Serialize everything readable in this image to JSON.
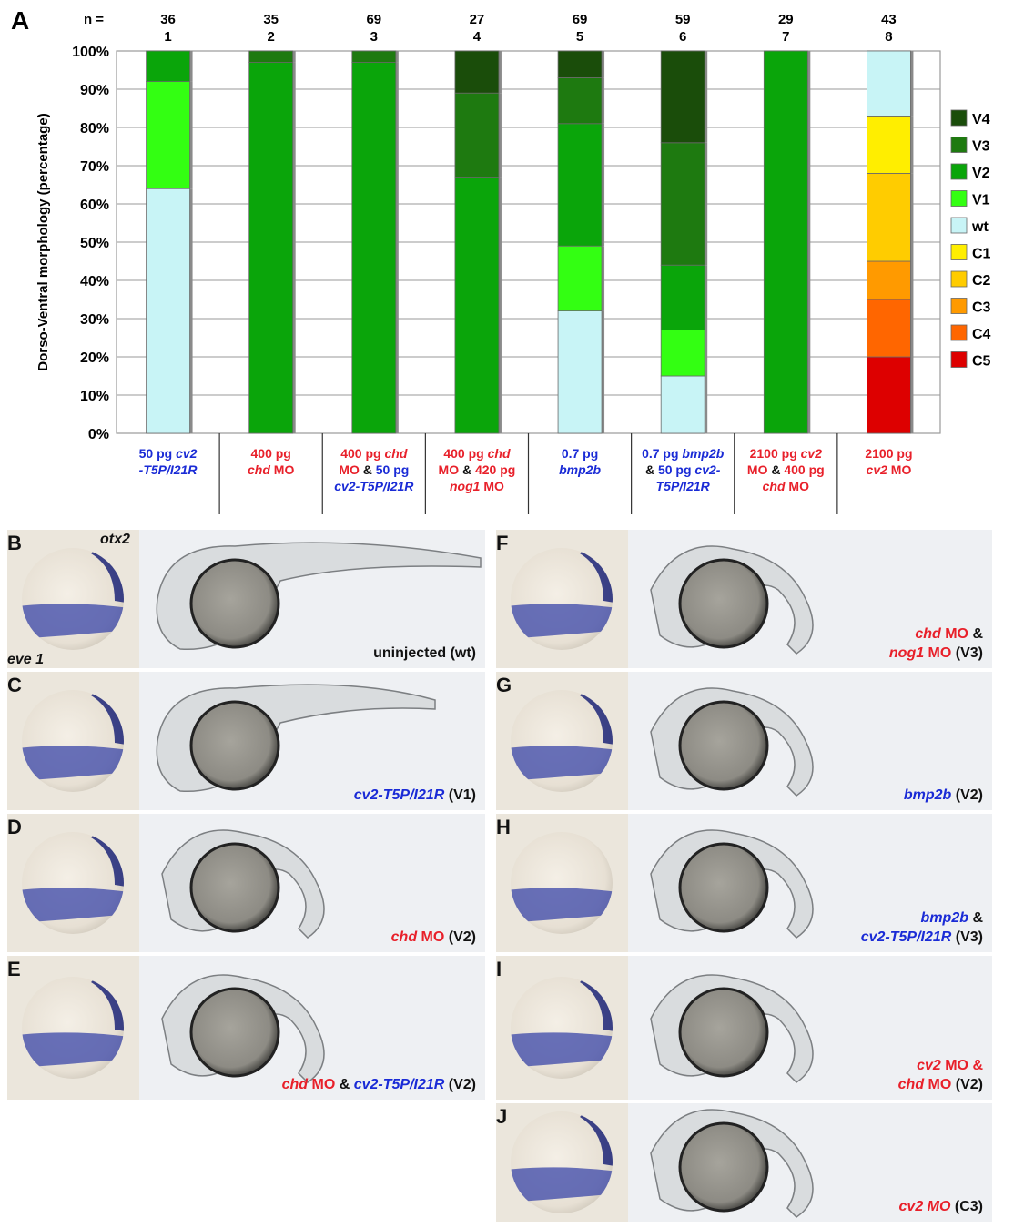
{
  "figure_label": "A",
  "chart_data": {
    "type": "bar",
    "stacked": true,
    "n_label": "n =",
    "ylabel": "Dorso-Ventral morphology (percentage)",
    "ylim": [
      0,
      100
    ],
    "yticks": [
      "0%",
      "10%",
      "20%",
      "30%",
      "40%",
      "50%",
      "60%",
      "70%",
      "80%",
      "90%",
      "100%"
    ],
    "grid": true,
    "legend_position": "right",
    "categories": [
      "1",
      "2",
      "3",
      "4",
      "5",
      "6",
      "7",
      "8"
    ],
    "n": [
      "36",
      "35",
      "69",
      "27",
      "69",
      "59",
      "29",
      "43"
    ],
    "stack_order": [
      "C5",
      "C4",
      "C3",
      "C2",
      "C1",
      "wt",
      "V1",
      "V2",
      "V3",
      "V4"
    ],
    "series": [
      {
        "name": "V4",
        "color": "#1a4d0a",
        "values": [
          0,
          0,
          0,
          11,
          7,
          24,
          0,
          0
        ]
      },
      {
        "name": "V3",
        "color": "#1e7a10",
        "values": [
          0,
          3,
          3,
          22,
          12,
          32,
          0,
          0
        ]
      },
      {
        "name": "V2",
        "color": "#0aa50a",
        "values": [
          8,
          97,
          97,
          67,
          32,
          17,
          100,
          0
        ]
      },
      {
        "name": "V1",
        "color": "#33ff12",
        "values": [
          28,
          0,
          0,
          0,
          17,
          12,
          0,
          0
        ]
      },
      {
        "name": "wt",
        "color": "#c8f4f6",
        "values": [
          64,
          0,
          0,
          0,
          32,
          15,
          0,
          17
        ]
      },
      {
        "name": "C1",
        "color": "#ffee00",
        "values": [
          0,
          0,
          0,
          0,
          0,
          0,
          0,
          15
        ]
      },
      {
        "name": "C2",
        "color": "#ffcc00",
        "values": [
          0,
          0,
          0,
          0,
          0,
          0,
          0,
          23
        ]
      },
      {
        "name": "C3",
        "color": "#ff9a00",
        "values": [
          0,
          0,
          0,
          0,
          0,
          0,
          0,
          10
        ]
      },
      {
        "name": "C4",
        "color": "#ff6600",
        "values": [
          0,
          0,
          0,
          0,
          0,
          0,
          0,
          15
        ]
      },
      {
        "name": "C5",
        "color": "#dd0000",
        "values": [
          0,
          0,
          0,
          0,
          0,
          0,
          0,
          20
        ]
      }
    ],
    "x_labels": [
      {
        "lines": [
          [
            [
              "b",
              "50 pg "
            ],
            [
              "bi",
              "cv2"
            ]
          ],
          [
            [
              "bi",
              "-T5P/I21R"
            ]
          ]
        ]
      },
      {
        "lines": [
          [
            [
              "r",
              "400 pg"
            ]
          ],
          [
            [
              "ri",
              "chd"
            ],
            [
              "r",
              " MO"
            ]
          ]
        ]
      },
      {
        "lines": [
          [
            [
              "r",
              "400 pg "
            ],
            [
              "ri",
              "chd"
            ]
          ],
          [
            [
              "r",
              "MO "
            ],
            [
              "k",
              "& "
            ],
            [
              "b",
              "50 pg"
            ]
          ],
          [
            [
              "bi",
              "cv2-T5P/I21R"
            ]
          ]
        ]
      },
      {
        "lines": [
          [
            [
              "r",
              "400 pg "
            ],
            [
              "ri",
              "chd"
            ]
          ],
          [
            [
              "r",
              "MO "
            ],
            [
              "k",
              "& "
            ],
            [
              "r",
              "420 pg"
            ]
          ],
          [
            [
              "ri",
              "nog1"
            ],
            [
              "r",
              " MO"
            ]
          ]
        ]
      },
      {
        "lines": [
          [
            [
              "b",
              "0.7 pg"
            ]
          ],
          [
            [
              "bi",
              "bmp2b"
            ]
          ]
        ]
      },
      {
        "lines": [
          [
            [
              "b",
              "0.7 pg "
            ],
            [
              "bi",
              "bmp2b"
            ]
          ],
          [
            [
              "k",
              "& "
            ],
            [
              "b",
              "50 pg "
            ],
            [
              "bi",
              "cv2-"
            ]
          ],
          [
            [
              "bi",
              "T5P/I21R"
            ]
          ]
        ]
      },
      {
        "lines": [
          [
            [
              "r",
              "2100 pg "
            ],
            [
              "ri",
              "cv2"
            ]
          ],
          [
            [
              "r",
              "MO "
            ],
            [
              "k",
              "& "
            ],
            [
              "r",
              "400 pg"
            ]
          ],
          [
            [
              "ri",
              "chd"
            ],
            [
              "r",
              " MO"
            ]
          ]
        ]
      },
      {
        "lines": [
          [
            [
              "r",
              "2100 pg"
            ]
          ],
          [
            [
              "ri",
              "cv2"
            ],
            [
              "r",
              " MO"
            ]
          ]
        ]
      }
    ]
  },
  "gene_labels": {
    "top": "otx2",
    "side": "eve 1"
  },
  "panels": [
    {
      "letter": "B",
      "caption": [
        [
          [
            "k",
            "uninjected (wt)"
          ]
        ]
      ]
    },
    {
      "letter": "C",
      "caption": [
        [
          [
            "bi",
            "cv2-T5P/I21R"
          ],
          [
            "k",
            " (V1)"
          ]
        ]
      ]
    },
    {
      "letter": "D",
      "caption": [
        [
          [
            "ri",
            "chd"
          ],
          [
            "r",
            " MO"
          ],
          [
            "k",
            " (V2)"
          ]
        ]
      ]
    },
    {
      "letter": "E",
      "caption": [
        [
          [
            "ri",
            "chd"
          ],
          [
            "r",
            " MO"
          ],
          [
            "k",
            " & "
          ],
          [
            "bi",
            "cv2-T5P/I21R"
          ],
          [
            "k",
            " (V2)"
          ]
        ]
      ]
    },
    {
      "letter": "F",
      "caption": [
        [
          [
            "ri",
            "chd"
          ],
          [
            "r",
            " MO"
          ],
          [
            "k",
            " &"
          ]
        ],
        [
          [
            "ri",
            "nog1"
          ],
          [
            "r",
            " MO"
          ],
          [
            "k",
            " (V3)"
          ]
        ]
      ]
    },
    {
      "letter": "G",
      "caption": [
        [
          [
            "bi",
            "bmp2b"
          ],
          [
            "k",
            " (V2)"
          ]
        ]
      ]
    },
    {
      "letter": "H",
      "caption": [
        [
          [
            "bi",
            "bmp2b"
          ],
          [
            "k",
            " &"
          ]
        ],
        [
          [
            "bi",
            "cv2-T5P/I21R"
          ],
          [
            "k",
            " (V3)"
          ]
        ]
      ]
    },
    {
      "letter": "I",
      "caption": [
        [
          [
            "ri",
            "cv2"
          ],
          [
            "r",
            " MO &"
          ]
        ],
        [
          [
            "ri",
            "chd"
          ],
          [
            "r",
            " MO"
          ],
          [
            "k",
            " (V2)"
          ]
        ]
      ]
    },
    {
      "letter": "J",
      "caption": [
        [
          [
            "ri",
            "cv2 MO"
          ],
          [
            "k",
            " (C3)"
          ]
        ]
      ]
    }
  ]
}
